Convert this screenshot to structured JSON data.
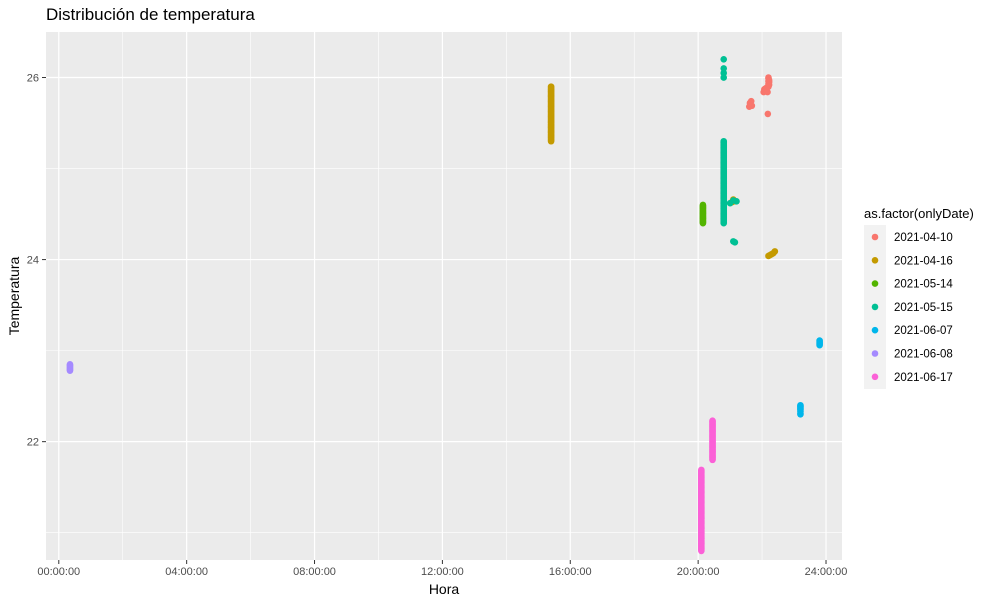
{
  "chart_data": {
    "type": "scatter",
    "title": "Distribución de temperatura",
    "xlabel": "Hora",
    "ylabel": "Temperatura",
    "x_unit": "hours",
    "xlim": [
      -0.4,
      24.5
    ],
    "ylim": [
      20.7,
      26.5
    ],
    "x_ticks": [
      0,
      4,
      8,
      12,
      16,
      20,
      24
    ],
    "x_tick_labels": [
      "00:00:00",
      "04:00:00",
      "08:00:00",
      "12:00:00",
      "16:00:00",
      "20:00:00",
      "24:00:00"
    ],
    "y_ticks": [
      22,
      24,
      26
    ],
    "y_tick_labels": [
      "22",
      "24",
      "26"
    ],
    "grid": true,
    "background": "#ebebeb",
    "legend_title": "as.factor(onlyDate)",
    "legend_position": "right",
    "series": [
      {
        "name": "2021-04-10",
        "color": "#F8766D",
        "x": [
          21.6,
          21.62,
          21.64,
          21.66,
          21.68,
          22.05,
          22.07,
          22.09,
          22.11,
          22.13,
          22.15,
          22.17,
          22.2,
          22.2,
          22.2,
          22.2,
          22.2,
          22.22,
          22.22,
          22.22,
          22.18
        ],
        "y": [
          25.68,
          25.72,
          25.7,
          25.74,
          25.69,
          25.84,
          25.87,
          25.85,
          25.88,
          25.86,
          25.89,
          25.84,
          25.9,
          25.93,
          25.96,
          25.99,
          26.0,
          25.92,
          25.95,
          25.97,
          25.6
        ]
      },
      {
        "name": "2021-04-16",
        "color": "#C49A00",
        "x": [
          15.4,
          15.4,
          15.4,
          15.4,
          15.4,
          15.4,
          15.4,
          15.4,
          15.4,
          15.4,
          15.4,
          15.4,
          15.4,
          15.4,
          15.4,
          15.4,
          15.4,
          15.4,
          15.4,
          15.4,
          15.4,
          15.4,
          15.4,
          15.4,
          15.4,
          15.4,
          15.4,
          15.4,
          15.4,
          15.4,
          15.4,
          15.4,
          15.4,
          15.4,
          15.4,
          15.4,
          15.4,
          15.4,
          15.4,
          15.4,
          15.4,
          15.4,
          15.4,
          15.4,
          15.4,
          15.4,
          15.4,
          15.4,
          15.4,
          15.4,
          15.4,
          15.4,
          15.4,
          15.4,
          15.4,
          15.4,
          15.4,
          15.4,
          15.4,
          15.4,
          15.4,
          21.05,
          21.1,
          21.15,
          22.2,
          22.25,
          22.3,
          22.35,
          22.4
        ],
        "y": [
          25.3,
          25.31,
          25.32,
          25.33,
          25.34,
          25.35,
          25.36,
          25.37,
          25.38,
          25.39,
          25.4,
          25.41,
          25.42,
          25.43,
          25.44,
          25.45,
          25.46,
          25.47,
          25.48,
          25.49,
          25.5,
          25.51,
          25.52,
          25.53,
          25.54,
          25.55,
          25.56,
          25.57,
          25.58,
          25.59,
          25.6,
          25.61,
          25.62,
          25.63,
          25.64,
          25.65,
          25.66,
          25.67,
          25.68,
          25.69,
          25.7,
          25.71,
          25.72,
          25.73,
          25.74,
          25.75,
          25.76,
          25.77,
          25.78,
          25.79,
          25.8,
          25.81,
          25.82,
          25.83,
          25.84,
          25.85,
          25.86,
          25.87,
          25.88,
          25.89,
          25.9,
          24.63,
          24.66,
          24.64,
          24.04,
          24.05,
          24.06,
          24.07,
          24.09
        ]
      },
      {
        "name": "2021-05-14",
        "color": "#53B400",
        "x": [
          20.15,
          20.15,
          20.15,
          20.15,
          20.15,
          20.15,
          20.15,
          20.15,
          20.15,
          20.15,
          20.15,
          20.15,
          20.15,
          20.15,
          20.15,
          20.15,
          20.15,
          20.15,
          20.15,
          20.15,
          20.15
        ],
        "y": [
          24.4,
          24.41,
          24.42,
          24.43,
          24.44,
          24.45,
          24.46,
          24.47,
          24.48,
          24.49,
          24.5,
          24.51,
          24.52,
          24.53,
          24.54,
          24.55,
          24.56,
          24.57,
          24.58,
          24.59,
          24.6
        ]
      },
      {
        "name": "2021-05-15",
        "color": "#00C094",
        "x": [
          20.8,
          20.8,
          20.8,
          20.8,
          20.8,
          20.8,
          20.8,
          20.8,
          20.8,
          20.8,
          20.8,
          20.8,
          20.8,
          20.8,
          20.8,
          20.8,
          20.8,
          20.8,
          20.8,
          20.8,
          20.8,
          20.8,
          20.8,
          20.8,
          20.8,
          20.8,
          20.8,
          20.8,
          20.8,
          20.8,
          20.8,
          20.8,
          20.8,
          20.8,
          20.8,
          20.8,
          20.8,
          20.8,
          20.8,
          20.8,
          20.8,
          20.8,
          20.8,
          20.8,
          20.8,
          20.8,
          20.8,
          20.8,
          20.8,
          20.8,
          20.8,
          20.8,
          20.8,
          20.8,
          20.8,
          20.8,
          20.8,
          20.8,
          20.8,
          20.8,
          20.8,
          20.8,
          20.8,
          20.8,
          20.8,
          20.8,
          20.8,
          20.8,
          20.8,
          20.8,
          20.8,
          20.8,
          20.8,
          20.8,
          20.8,
          20.8,
          20.8,
          20.8,
          20.8,
          20.8,
          20.8,
          20.8,
          20.8,
          20.8,
          20.8,
          20.8,
          20.8,
          20.8,
          20.8,
          20.8,
          20.8,
          20.8,
          20.8,
          20.8,
          20.8,
          21.0,
          21.1,
          21.2,
          21.1,
          21.15
        ],
        "y": [
          24.4,
          24.41,
          24.42,
          24.43,
          24.44,
          24.45,
          24.46,
          24.47,
          24.48,
          24.49,
          24.5,
          24.51,
          24.52,
          24.53,
          24.54,
          24.55,
          24.56,
          24.57,
          24.58,
          24.59,
          24.6,
          24.61,
          24.62,
          24.63,
          24.64,
          24.65,
          24.66,
          24.67,
          24.68,
          24.69,
          24.7,
          24.71,
          24.72,
          24.73,
          24.74,
          24.75,
          24.76,
          24.77,
          24.78,
          24.79,
          24.8,
          24.81,
          24.82,
          24.83,
          24.84,
          24.85,
          24.86,
          24.87,
          24.88,
          24.89,
          24.9,
          24.91,
          24.92,
          24.93,
          24.94,
          24.95,
          24.96,
          24.97,
          24.98,
          24.99,
          25.0,
          25.01,
          25.02,
          25.03,
          25.04,
          25.05,
          25.06,
          25.07,
          25.08,
          25.09,
          25.1,
          25.11,
          25.12,
          25.13,
          25.14,
          25.15,
          25.16,
          25.17,
          25.18,
          25.19,
          25.2,
          25.21,
          25.22,
          25.23,
          25.24,
          25.25,
          25.26,
          25.27,
          25.28,
          25.29,
          25.3,
          26.0,
          26.1,
          26.2,
          26.05,
          24.62,
          24.65,
          24.64,
          24.2,
          24.19
        ]
      },
      {
        "name": "2021-06-07",
        "color": "#00B6EB",
        "x": [
          23.2,
          23.2,
          23.2,
          23.2,
          23.2,
          23.2,
          23.2,
          23.2,
          23.2,
          23.8,
          23.8,
          23.8,
          23.8,
          23.8,
          23.8
        ],
        "y": [
          22.3,
          22.31,
          22.33,
          22.35,
          22.36,
          22.37,
          22.38,
          22.39,
          22.4,
          23.06,
          23.07,
          23.08,
          23.09,
          23.1,
          23.11
        ]
      },
      {
        "name": "2021-06-08",
        "color": "#A58AFF",
        "x": [
          0.35,
          0.35,
          0.35,
          0.35,
          0.35,
          0.35,
          0.35,
          0.35
        ],
        "y": [
          22.78,
          22.79,
          22.8,
          22.81,
          22.82,
          22.83,
          22.84,
          22.85
        ]
      },
      {
        "name": "2021-06-17",
        "color": "#FB61D7",
        "x": [
          20.1,
          20.1,
          20.1,
          20.1,
          20.1,
          20.1,
          20.1,
          20.1,
          20.1,
          20.1,
          20.1,
          20.1,
          20.1,
          20.1,
          20.1,
          20.1,
          20.1,
          20.1,
          20.1,
          20.1,
          20.1,
          20.1,
          20.1,
          20.1,
          20.1,
          20.1,
          20.1,
          20.1,
          20.1,
          20.1,
          20.1,
          20.1,
          20.1,
          20.1,
          20.1,
          20.1,
          20.1,
          20.1,
          20.1,
          20.1,
          20.1,
          20.1,
          20.1,
          20.1,
          20.1,
          20.1,
          20.1,
          20.1,
          20.1,
          20.1,
          20.1,
          20.1,
          20.1,
          20.1,
          20.1,
          20.1,
          20.1,
          20.1,
          20.1,
          20.1,
          20.1,
          20.1,
          20.1,
          20.1,
          20.1,
          20.1,
          20.1,
          20.1,
          20.1,
          20.1,
          20.1,
          20.1,
          20.1,
          20.1,
          20.1,
          20.1,
          20.1,
          20.1,
          20.1,
          20.1,
          20.1,
          20.1,
          20.1,
          20.1,
          20.1,
          20.1,
          20.1,
          20.1,
          20.1,
          20.1,
          20.45,
          20.45,
          20.45,
          20.45,
          20.45,
          20.45,
          20.45,
          20.45,
          20.45,
          20.45,
          20.45,
          20.45,
          20.45,
          20.45,
          20.45,
          20.45,
          20.45,
          20.45,
          20.45,
          20.45,
          20.45,
          20.45,
          20.45,
          20.45,
          20.45,
          20.45,
          20.45,
          20.45,
          20.45,
          20.45,
          20.45,
          20.45,
          20.45,
          20.45,
          20.45,
          20.45,
          20.45,
          20.45,
          20.45,
          20.45,
          20.45,
          20.45,
          20.45,
          20.45
        ],
        "y": [
          20.8,
          20.81,
          20.82,
          20.83,
          20.84,
          20.85,
          20.86,
          20.87,
          20.88,
          20.89,
          20.9,
          20.91,
          20.92,
          20.93,
          20.94,
          20.95,
          20.96,
          20.97,
          20.98,
          20.99,
          21.0,
          21.01,
          21.02,
          21.03,
          21.04,
          21.05,
          21.06,
          21.07,
          21.08,
          21.09,
          21.1,
          21.11,
          21.12,
          21.13,
          21.14,
          21.15,
          21.16,
          21.17,
          21.18,
          21.19,
          21.2,
          21.21,
          21.22,
          21.23,
          21.24,
          21.25,
          21.26,
          21.27,
          21.28,
          21.29,
          21.3,
          21.31,
          21.32,
          21.33,
          21.34,
          21.35,
          21.36,
          21.37,
          21.38,
          21.39,
          21.4,
          21.41,
          21.42,
          21.43,
          21.44,
          21.45,
          21.46,
          21.47,
          21.48,
          21.49,
          21.5,
          21.51,
          21.52,
          21.53,
          21.54,
          21.55,
          21.56,
          21.57,
          21.58,
          21.59,
          21.6,
          21.61,
          21.62,
          21.63,
          21.64,
          21.65,
          21.66,
          21.67,
          21.68,
          21.69,
          21.8,
          21.81,
          21.82,
          21.83,
          21.84,
          21.85,
          21.86,
          21.87,
          21.88,
          21.89,
          21.9,
          21.91,
          21.92,
          21.93,
          21.94,
          21.95,
          21.96,
          21.97,
          21.98,
          21.99,
          22.0,
          22.01,
          22.02,
          22.03,
          22.04,
          22.05,
          22.06,
          22.07,
          22.08,
          22.09,
          22.1,
          22.11,
          22.12,
          22.13,
          22.14,
          22.15,
          22.16,
          22.17,
          22.18,
          22.19,
          22.2,
          22.21,
          22.22,
          22.23
        ]
      }
    ]
  }
}
